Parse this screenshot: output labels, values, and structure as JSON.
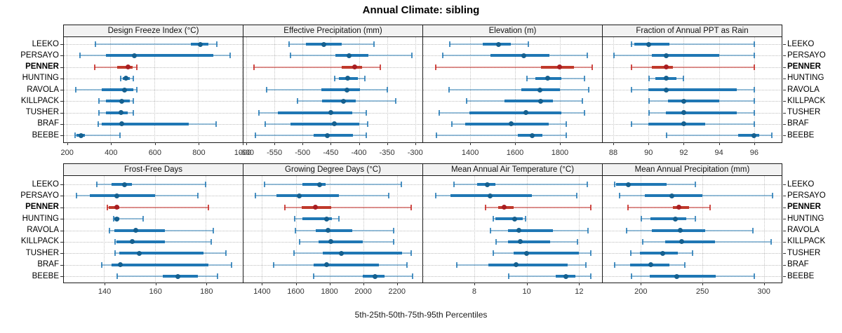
{
  "title": "Annual Climate: sibling",
  "xlabel": "5th-25th-50th-75th-95th Percentiles",
  "sites": [
    "LEEKO",
    "PERSAYO",
    "PENNER",
    "HUNTING",
    "RAVOLA",
    "KILLPACK",
    "TUSHER",
    "BRAF",
    "BEEBE"
  ],
  "highlight_site": "PENNER",
  "colors": {
    "blue_thin": "rgba(31,119,180,0.45)",
    "blue_cap": "rgba(31,119,180,0.8)",
    "blue_thick": "#1f77b4",
    "blue_dot": "#15608f",
    "red_thin": "rgba(200,45,40,0.5)",
    "red_cap": "rgba(200,45,40,0.85)",
    "red_thick": "#c0392b",
    "red_dot": "#a81e22",
    "grid": "#bdbdbd",
    "strip_bg": "#f2f2f2",
    "border": "#1a1a1a"
  },
  "chart_data": {
    "type": "dotplot-interval",
    "note": "Each row shows 5th-25th-50th-75th-95th percentiles; PENNER highlighted red",
    "percentiles": [
      5,
      25,
      50,
      75,
      95
    ],
    "layout": {
      "rows": 2,
      "cols": 4,
      "legend": "none",
      "grid": "dotted"
    },
    "panels": [
      {
        "title": "Design Freeze Index (°C)",
        "xmin": 185,
        "xmax": 1003,
        "ticks": [
          200,
          400,
          600,
          800,
          1000
        ],
        "rows": [
          {
            "site": "LEEKO",
            "values": [
              330,
              765,
              810,
              845,
              885
            ]
          },
          {
            "site": "PERSAYO",
            "values": [
              260,
              380,
              510,
              870,
              945
            ]
          },
          {
            "site": "PENNER",
            "values": [
              325,
              430,
              480,
              500,
              520
            ]
          },
          {
            "site": "HUNTING",
            "values": [
              445,
              457,
              471,
              490,
              503
            ]
          },
          {
            "site": "RAVOLA",
            "values": [
              240,
              360,
              465,
              505,
              520
            ]
          },
          {
            "site": "KILLPACK",
            "values": [
              345,
              380,
              453,
              487,
              505
            ]
          },
          {
            "site": "TUSHER",
            "values": [
              345,
              380,
              450,
              480,
              503
            ]
          },
          {
            "site": "BRAF",
            "values": [
              340,
              362,
              453,
              758,
              880
            ]
          },
          {
            "site": "BEEBE",
            "values": [
              235,
              246,
              266,
              283,
              443
            ]
          }
        ]
      },
      {
        "title": "Effective Precipitation (mm)",
        "xmin": -605,
        "xmax": -286,
        "ticks": [
          -600,
          -550,
          -500,
          -450,
          -400,
          -350,
          -300
        ],
        "rows": [
          {
            "site": "LEEKO",
            "values": [
              -525,
              -494,
              -462,
              -431,
              -373
            ]
          },
          {
            "site": "PERSAYO",
            "values": [
              -523,
              -442,
              -417,
              -383,
              -306
            ]
          },
          {
            "site": "PENNER",
            "values": [
              -588,
              -431,
              -407,
              -394,
              -362
            ]
          },
          {
            "site": "HUNTING",
            "values": [
              -444,
              -435,
              -420,
              -402,
              -390
            ]
          },
          {
            "site": "RAVOLA",
            "values": [
              -565,
              -467,
              -421,
              -398,
              -350
            ]
          },
          {
            "site": "KILLPACK",
            "values": [
              -510,
              -465,
              -427,
              -406,
              -335
            ]
          },
          {
            "site": "TUSHER",
            "values": [
              -579,
              -544,
              -450,
              -412,
              -387
            ]
          },
          {
            "site": "BRAF",
            "values": [
              -567,
              -521,
              -444,
              -400,
              -385
            ]
          },
          {
            "site": "BEEBE",
            "values": [
              -585,
              -481,
              -456,
              -410,
              -387
            ]
          }
        ]
      },
      {
        "title": "Elevation (m)",
        "xmin": 1190,
        "xmax": 1991,
        "ticks": [
          1400,
          1600,
          1800
        ],
        "rows": [
          {
            "site": "LEEKO",
            "values": [
              1305,
              1457,
              1525,
              1582,
              1660
            ]
          },
          {
            "site": "PERSAYO",
            "values": [
              1273,
              1489,
              1640,
              1754,
              1923
            ]
          },
          {
            "site": "PENNER",
            "values": [
              1242,
              1715,
              1798,
              1864,
              1945
            ]
          },
          {
            "site": "HUNTING",
            "values": [
              1650,
              1690,
              1744,
              1806,
              1910
            ]
          },
          {
            "site": "RAVOLA",
            "values": [
              1304,
              1629,
              1712,
              1801,
              1929
            ]
          },
          {
            "site": "KILLPACK",
            "values": [
              1381,
              1554,
              1715,
              1770,
              1900
            ]
          },
          {
            "site": "TUSHER",
            "values": [
              1259,
              1395,
              1648,
              1806,
              1910
            ]
          },
          {
            "site": "BRAF",
            "values": [
              1315,
              1377,
              1582,
              1749,
              1829
            ]
          },
          {
            "site": "BEEBE",
            "values": [
              1246,
              1611,
              1676,
              1723,
              1827
            ]
          }
        ]
      },
      {
        "title": "Fraction of Annual PPT as Rain",
        "xmin": 87.4,
        "xmax": 97.6,
        "ticks": [
          88,
          90,
          92,
          94,
          96
        ],
        "rows": [
          {
            "site": "LEEKO",
            "values": [
              89,
              89.2,
              90,
              91.2,
              96
            ]
          },
          {
            "site": "PERSAYO",
            "values": [
              88,
              90.2,
              91,
              94,
              96
            ]
          },
          {
            "site": "PENNER",
            "values": [
              89,
              90.2,
              91,
              91.4,
              96
            ]
          },
          {
            "site": "HUNTING",
            "values": [
              90,
              90.4,
              91,
              91.6,
              92
            ]
          },
          {
            "site": "RAVOLA",
            "values": [
              89,
              90,
              91,
              95,
              96
            ]
          },
          {
            "site": "KILLPACK",
            "values": [
              90,
              91.1,
              92,
              94,
              96
            ]
          },
          {
            "site": "TUSHER",
            "values": [
              90,
              91,
              92,
              95,
              96
            ]
          },
          {
            "site": "BRAF",
            "values": [
              89,
              90,
              92,
              93.2,
              96
            ]
          },
          {
            "site": "BEEBE",
            "values": [
              91,
              95.1,
              96,
              96.3,
              97
            ]
          }
        ]
      },
      {
        "title": "Frost-Free Days",
        "xmin": 124,
        "xmax": 194.5,
        "ticks": [
          140,
          160,
          180
        ],
        "rows": [
          {
            "site": "LEEKO",
            "values": [
              137,
              143,
              148,
              151,
              180
            ]
          },
          {
            "site": "PERSAYO",
            "values": [
              129,
              134.5,
              145,
              160,
              177
            ]
          },
          {
            "site": "PENNER",
            "values": [
              141,
              142,
              145,
              146,
              181
            ]
          },
          {
            "site": "HUNTING",
            "values": [
              143.5,
              144,
              145,
              146,
              155.5
            ]
          },
          {
            "site": "RAVOLA",
            "values": [
              142,
              144,
              152.5,
              164,
              183
            ]
          },
          {
            "site": "KILLPACK",
            "values": [
              144,
              145,
              151,
              164,
              182
            ]
          },
          {
            "site": "TUSHER",
            "values": [
              144,
              146,
              154,
              179,
              188
            ]
          },
          {
            "site": "BRAF",
            "values": [
              139,
              143,
              146.5,
              181,
              190
            ]
          },
          {
            "site": "BEEBE",
            "values": [
              145,
              163,
              169,
              177,
              184.5
            ]
          }
        ]
      },
      {
        "title": "Growing Degree Days (°C)",
        "xmin": 1290,
        "xmax": 2355,
        "ticks": [
          1400,
          1600,
          1800,
          2000,
          2200
        ],
        "rows": [
          {
            "site": "LEEKO",
            "values": [
              1410,
              1640,
              1740,
              1775,
              2225
            ]
          },
          {
            "site": "PERSAYO",
            "values": [
              1355,
              1486,
              1620,
              1855,
              2150
            ]
          },
          {
            "site": "PENNER",
            "values": [
              1530,
              1635,
              1717,
              1810,
              2283
            ]
          },
          {
            "site": "HUNTING",
            "values": [
              1590,
              1640,
              1785,
              1815,
              1855
            ]
          },
          {
            "site": "RAVOLA",
            "values": [
              1595,
              1717,
              1790,
              1934,
              2180
            ]
          },
          {
            "site": "KILLPACK",
            "values": [
              1617,
              1734,
              1806,
              1996,
              2182
            ]
          },
          {
            "site": "TUSHER",
            "values": [
              1585,
              1760,
              1870,
              2230,
              2285
            ]
          },
          {
            "site": "BRAF",
            "values": [
              1465,
              1706,
              1782,
              2092,
              2260
            ]
          },
          {
            "site": "BEEBE",
            "values": [
              1703,
              1996,
              2068,
              2127,
              2293
            ]
          }
        ]
      },
      {
        "title": "Mean Annual Air Temperature (°C)",
        "xmin": 6.05,
        "xmax": 12.9,
        "ticks": [
          8,
          10,
          12
        ],
        "rows": [
          {
            "site": "LEEKO",
            "values": [
              7.2,
              8.1,
              8.5,
              8.8,
              12.3
            ]
          },
          {
            "site": "PERSAYO",
            "values": [
              6.5,
              7.1,
              8.6,
              10.2,
              11.9
            ]
          },
          {
            "site": "PENNER",
            "values": [
              8.4,
              8.9,
              9.15,
              9.5,
              12.45
            ]
          },
          {
            "site": "HUNTING",
            "values": [
              8.7,
              8.8,
              9.55,
              9.85,
              9.95
            ]
          },
          {
            "site": "RAVOLA",
            "values": [
              8.6,
              9.3,
              9.7,
              11.0,
              12.35
            ]
          },
          {
            "site": "KILLPACK",
            "values": [
              8.8,
              9.3,
              9.75,
              10.9,
              11.95
            ]
          },
          {
            "site": "TUSHER",
            "values": [
              8.7,
              9.5,
              10.0,
              12.0,
              12.45
            ]
          },
          {
            "site": "BRAF",
            "values": [
              7.3,
              8.55,
              9.6,
              11.55,
              12.25
            ]
          },
          {
            "site": "BEEBE",
            "values": [
              9.3,
              11.1,
              11.5,
              11.85,
              12.45
            ]
          }
        ]
      },
      {
        "title": "Mean Annual Precipitation (mm)",
        "xmin": 169,
        "xmax": 315,
        "ticks": [
          200,
          250,
          300
        ],
        "rows": [
          {
            "site": "LEEKO",
            "values": [
              178,
              180,
              190,
              221,
              244
            ]
          },
          {
            "site": "PERSAYO",
            "values": [
              182,
              203,
              225,
              250,
              307
            ]
          },
          {
            "site": "PENNER",
            "values": [
              189,
              226,
              231,
              239,
              256
            ]
          },
          {
            "site": "HUNTING",
            "values": [
              200,
              208,
              228,
              237,
              244
            ]
          },
          {
            "site": "RAVOLA",
            "values": [
              188,
              209,
              232,
              252,
              291
            ]
          },
          {
            "site": "KILLPACK",
            "values": [
              201,
              220,
              233,
              260,
              306
            ]
          },
          {
            "site": "TUSHER",
            "values": [
              191,
              199,
              218,
              230,
              242
            ]
          },
          {
            "site": "BRAF",
            "values": [
              178,
              191,
              208,
              223,
              236
            ]
          },
          {
            "site": "BEEBE",
            "values": [
              192,
              207,
              229,
              261,
              292
            ]
          }
        ]
      }
    ]
  }
}
